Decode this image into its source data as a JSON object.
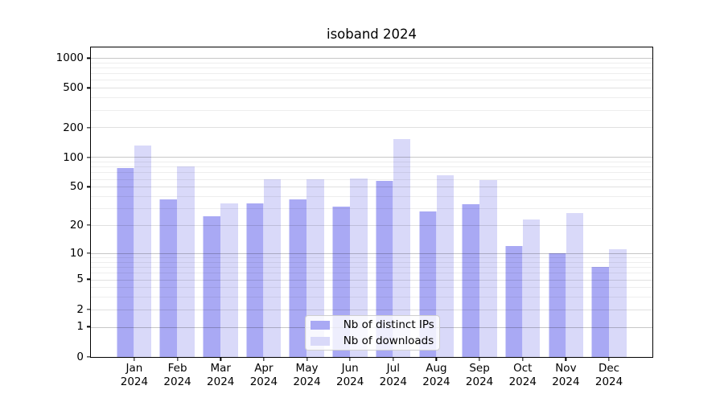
{
  "title": "isoband 2024",
  "chart_data": {
    "type": "bar",
    "title": "isoband 2024",
    "categories": [
      "Jan 2024",
      "Feb 2024",
      "Mar 2024",
      "Apr 2024",
      "May 2024",
      "Jun 2024",
      "Jul 2024",
      "Aug 2024",
      "Sep 2024",
      "Oct 2024",
      "Nov 2024",
      "Dec 2024"
    ],
    "series": [
      {
        "name": "Nb of distinct IPs",
        "color": "#a9a9f4",
        "values": [
          77,
          37,
          25,
          34,
          37,
          31,
          57,
          28,
          33,
          12,
          10,
          7
        ]
      },
      {
        "name": "Nb of downloads",
        "color": "#d9d9f9",
        "values": [
          131,
          80,
          34,
          60,
          60,
          61,
          151,
          65,
          58,
          23,
          27,
          11
        ]
      }
    ],
    "xlabel": "",
    "ylabel": "",
    "yscale": "log10(1+x)",
    "yticks": [
      0,
      1,
      2,
      5,
      10,
      20,
      50,
      100,
      200,
      500,
      1000
    ],
    "ylim": [
      0,
      1272
    ],
    "grid": "horizontal; dark lines at decades 1/10/100/1000, faint log minors",
    "legend_position": "lower center inside plot",
    "bar_layout": "paired bars per month, IPs left, downloads right"
  }
}
